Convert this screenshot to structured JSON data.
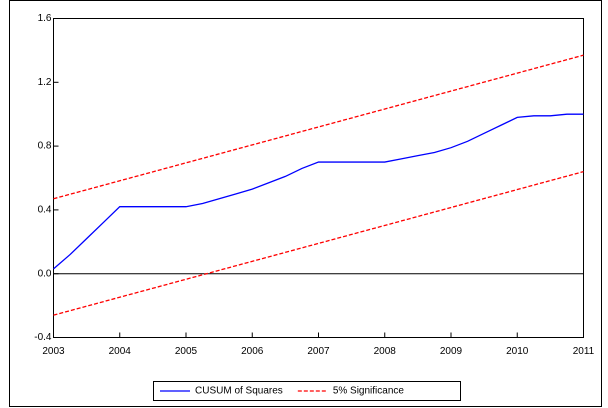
{
  "chart_data": {
    "type": "line",
    "series": [
      {
        "name": "CUSUM of Squares",
        "color": "#0000ff",
        "dash": false,
        "x": [
          2003,
          2003.25,
          2003.5,
          2003.75,
          2004,
          2004.25,
          2004.5,
          2004.75,
          2005,
          2005.25,
          2005.5,
          2005.75,
          2006,
          2006.25,
          2006.5,
          2006.75,
          2007,
          2007.25,
          2007.5,
          2007.75,
          2008,
          2008.25,
          2008.5,
          2008.75,
          2009,
          2009.25,
          2009.5,
          2009.75,
          2010,
          2010.25,
          2010.5,
          2010.75,
          2011
        ],
        "values": [
          0.03,
          0.12,
          0.22,
          0.32,
          0.42,
          0.42,
          0.42,
          0.42,
          0.42,
          0.44,
          0.47,
          0.5,
          0.53,
          0.57,
          0.61,
          0.66,
          0.7,
          0.7,
          0.7,
          0.7,
          0.7,
          0.72,
          0.74,
          0.76,
          0.79,
          0.83,
          0.88,
          0.93,
          0.98,
          0.99,
          0.99,
          1.0,
          1.0
        ]
      },
      {
        "name": "5% Significance",
        "color": "#ff0000",
        "dash": true,
        "x": [
          2003,
          2011
        ],
        "values": [
          0.47,
          1.37
        ]
      },
      {
        "color": "#ff0000",
        "dash": true,
        "x": [
          2003,
          2011
        ],
        "values": [
          -0.26,
          0.64
        ]
      }
    ],
    "xlim": [
      2003,
      2011
    ],
    "xticks": [
      2003,
      2004,
      2005,
      2006,
      2007,
      2008,
      2009,
      2010,
      2011
    ],
    "ylim": [
      -0.4,
      1.6
    ],
    "yticks": [
      -0.4,
      {
        "value": 0,
        "label": "0.0"
      },
      0.4,
      0.8,
      1.2,
      1.6
    ],
    "zero_line": true
  }
}
